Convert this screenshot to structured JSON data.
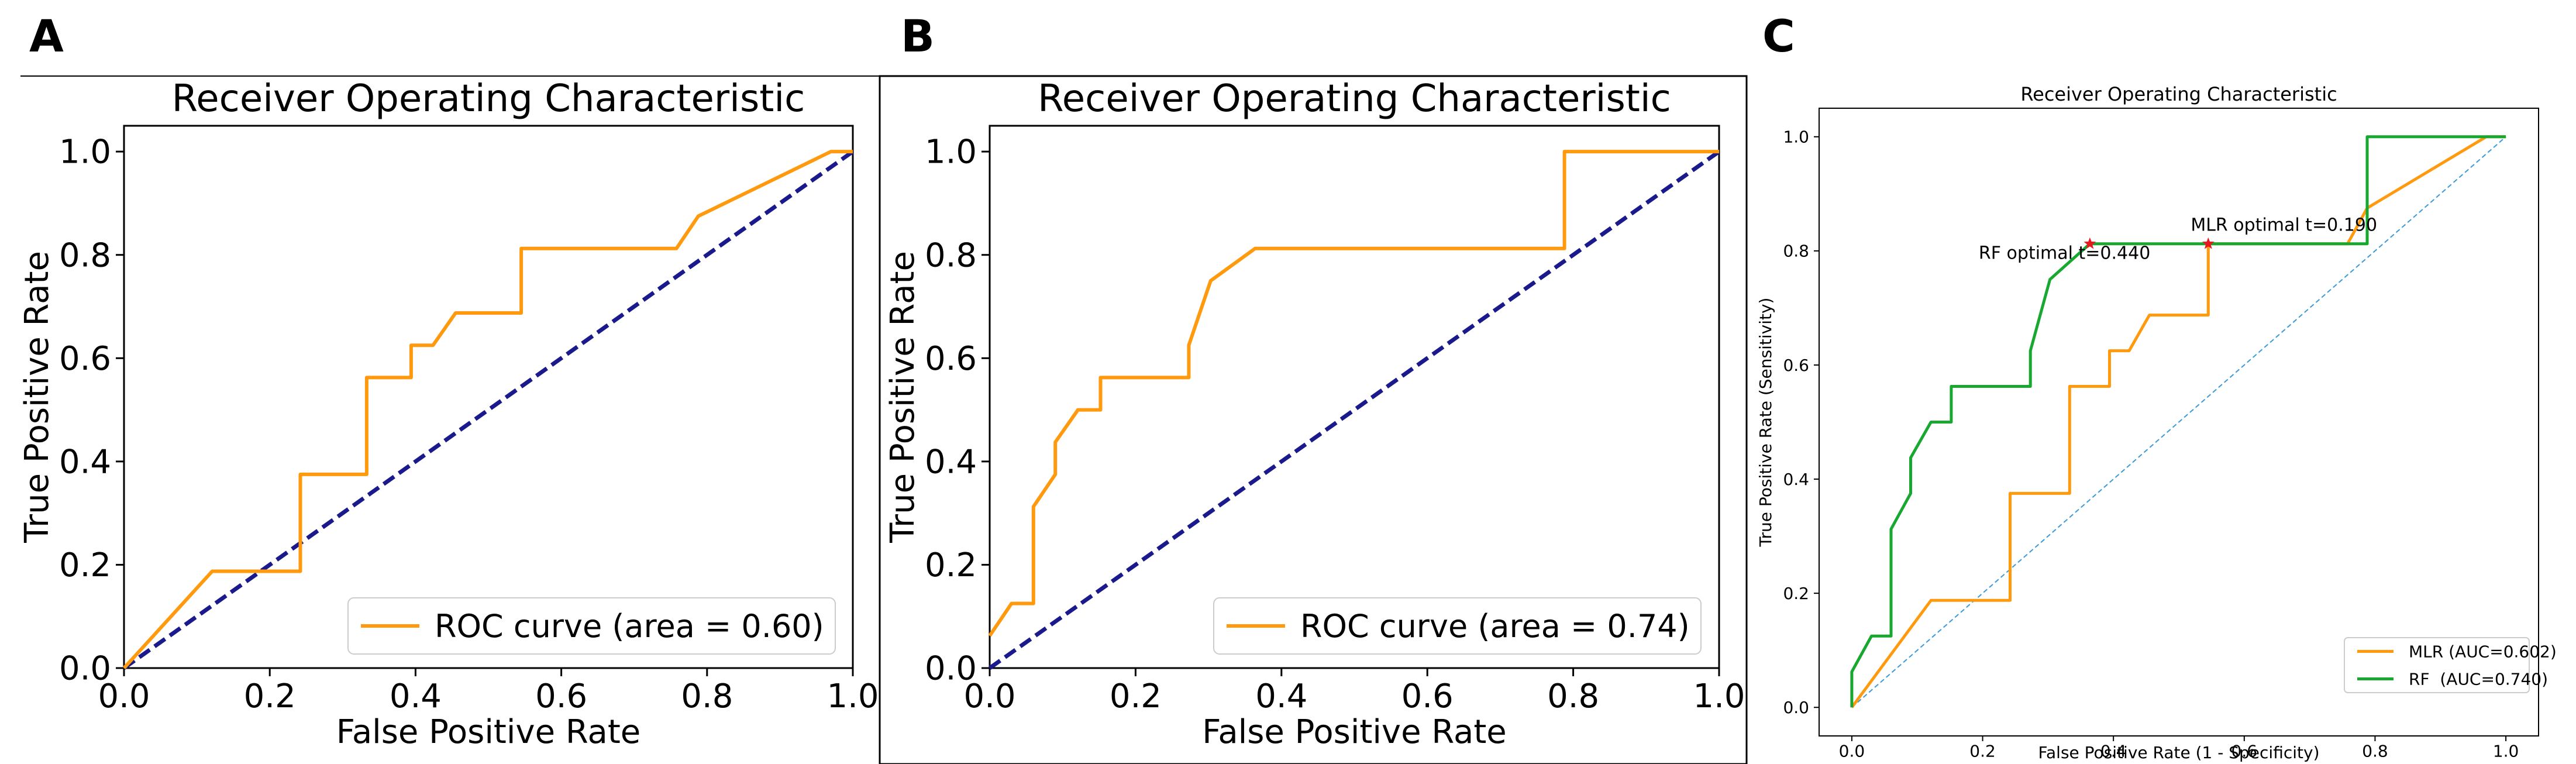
{
  "panels": [
    {
      "label": "A"
    },
    {
      "label": "B"
    },
    {
      "label": "C"
    }
  ],
  "chart_data": [
    {
      "type": "line",
      "title": "Receiver Operating Characteristic",
      "xlabel": "False Positive Rate",
      "ylabel": "True Positive Rate",
      "xlim": [
        0,
        1
      ],
      "ylim": [
        0,
        1.05
      ],
      "xticks": [
        "0.0",
        "0.2",
        "0.4",
        "0.6",
        "0.8",
        "1.0"
      ],
      "yticks": [
        "0.0",
        "0.2",
        "0.4",
        "0.6",
        "0.8",
        "1.0"
      ],
      "legend_position": "lower-right",
      "series": [
        {
          "name": "ROC curve (area = 0.60)",
          "color": "#ff9a0e",
          "style": "solid",
          "x": [
            0,
            0.121,
            0.242,
            0.242,
            0.333,
            0.333,
            0.394,
            0.394,
            0.424,
            0.455,
            0.545,
            0.545,
            0.758,
            0.788,
            0.97,
            1.0
          ],
          "y": [
            0,
            0.1875,
            0.1875,
            0.375,
            0.375,
            0.5625,
            0.5625,
            0.625,
            0.625,
            0.6875,
            0.6875,
            0.8125,
            0.8125,
            0.875,
            1.0,
            1.0
          ]
        },
        {
          "color": "#1a1a8c",
          "style": "dashed",
          "x": [
            0,
            1
          ],
          "y": [
            0,
            1
          ]
        }
      ]
    },
    {
      "type": "line",
      "title": "Receiver Operating Characteristic",
      "xlabel": "False Positive Rate",
      "ylabel": "True Positive Rate",
      "xlim": [
        0,
        1
      ],
      "ylim": [
        0,
        1.05
      ],
      "xticks": [
        "0.0",
        "0.2",
        "0.4",
        "0.6",
        "0.8",
        "1.0"
      ],
      "yticks": [
        "0.0",
        "0.2",
        "0.4",
        "0.6",
        "0.8",
        "1.0"
      ],
      "legend_position": "lower-right",
      "series": [
        {
          "name": "ROC curve (area = 0.74)",
          "color": "#ff9a0e",
          "style": "solid",
          "x": [
            0,
            0.03,
            0.06,
            0.06,
            0.09,
            0.09,
            0.121,
            0.152,
            0.152,
            0.273,
            0.273,
            0.303,
            0.364,
            0.788,
            0.788,
            1.0
          ],
          "y": [
            0.0625,
            0.125,
            0.125,
            0.3125,
            0.375,
            0.4375,
            0.5,
            0.5,
            0.5625,
            0.5625,
            0.625,
            0.75,
            0.8125,
            0.8125,
            1.0,
            1.0
          ]
        },
        {
          "color": "#1a1a8c",
          "style": "dashed",
          "x": [
            0,
            1
          ],
          "y": [
            0,
            1
          ]
        }
      ]
    },
    {
      "type": "line",
      "title": "Receiver Operating Characteristic",
      "xlabel": "False Positive Rate (1 - Specificity)",
      "ylabel": "True Positive Rate (Sensitivity)",
      "xlim": [
        -0.05,
        1.05
      ],
      "ylim": [
        -0.05,
        1.05
      ],
      "xticks": [
        "0.0",
        "0.2",
        "0.4",
        "0.6",
        "0.8",
        "1.0"
      ],
      "yticks": [
        "0.0",
        "0.2",
        "0.4",
        "0.6",
        "0.8",
        "1.0"
      ],
      "legend_position": "lower-right",
      "series": [
        {
          "name": "MLR (AUC=0.602)",
          "color": "#ff9a0e",
          "style": "solid",
          "x": [
            0,
            0.121,
            0.242,
            0.242,
            0.333,
            0.333,
            0.394,
            0.394,
            0.424,
            0.455,
            0.545,
            0.545,
            0.758,
            0.788,
            0.97,
            1.0
          ],
          "y": [
            0,
            0.1875,
            0.1875,
            0.375,
            0.375,
            0.5625,
            0.5625,
            0.625,
            0.625,
            0.6875,
            0.6875,
            0.8125,
            0.8125,
            0.875,
            1.0,
            1.0
          ]
        },
        {
          "name": "RF  (AUC=0.740)",
          "color": "#18a830",
          "style": "solid",
          "x": [
            0,
            0,
            0.03,
            0.06,
            0.06,
            0.09,
            0.09,
            0.121,
            0.152,
            0.152,
            0.273,
            0.273,
            0.303,
            0.364,
            0.788,
            0.788,
            1.0
          ],
          "y": [
            0,
            0.0625,
            0.125,
            0.125,
            0.3125,
            0.375,
            0.4375,
            0.5,
            0.5,
            0.5625,
            0.5625,
            0.625,
            0.75,
            0.8125,
            0.8125,
            1.0,
            1.0
          ]
        },
        {
          "color": "#3a9ad9",
          "style": "dashed",
          "x": [
            0,
            1
          ],
          "y": [
            0,
            1
          ]
        }
      ],
      "annotations": [
        {
          "text": "RF optimal t=0.440",
          "x": 0.364,
          "y": 0.8125,
          "color": "#e8191c"
        },
        {
          "text": "MLR optimal t=0.190",
          "x": 0.545,
          "y": 0.8125,
          "color": "#e8191c"
        }
      ]
    }
  ]
}
